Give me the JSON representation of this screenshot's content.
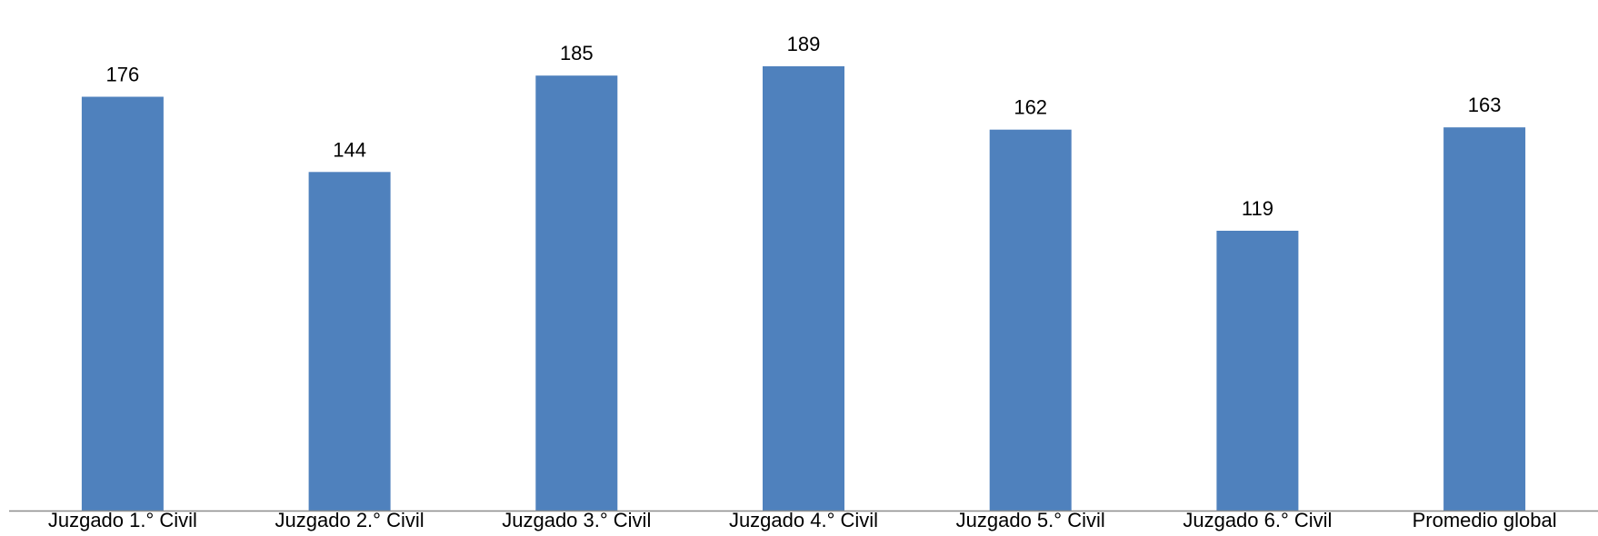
{
  "chart_data": {
    "type": "bar",
    "categories": [
      "Juzgado 1.° Civil",
      "Juzgado 2.° Civil",
      "Juzgado 3.° Civil",
      "Juzgado 4.° Civil",
      "Juzgado 5.° Civil",
      "Juzgado 6.° Civil",
      "Promedio global"
    ],
    "values": [
      176,
      144,
      185,
      189,
      162,
      119,
      163
    ],
    "title": "",
    "xlabel": "",
    "ylabel": "",
    "ylim": [
      0,
      200
    ],
    "grid": false,
    "legend": "none",
    "show_y_axis": false,
    "data_labels": true,
    "colors": {
      "bar": "#4F81BD",
      "axis": "#8C8C8C",
      "text": "#000000",
      "background": "#FFFFFF"
    }
  }
}
